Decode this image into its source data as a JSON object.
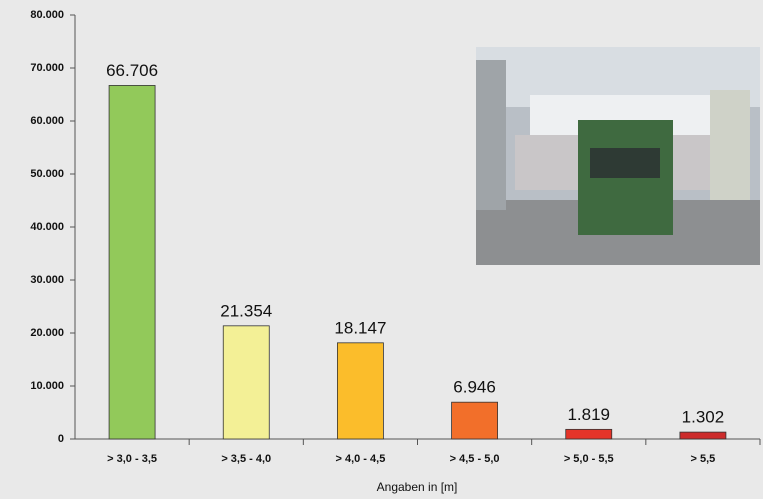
{
  "chart_data": {
    "type": "bar",
    "x_label": "Angaben in [m]",
    "categories": [
      "> 3,0 - 3,5",
      "> 3,5 - 4,0",
      "> 4,0 - 4,5",
      "> 4,5 - 5,0",
      "> 5,0 - 5,5",
      "> 5,5"
    ],
    "values": [
      66706,
      21354,
      18147,
      6946,
      1819,
      1302
    ],
    "value_labels": [
      "66.706",
      "21.354",
      "18.147",
      "6.946",
      "1.819",
      "1.302"
    ],
    "colors": [
      "#92c95a",
      "#f3f096",
      "#fbbd2b",
      "#f26f2a",
      "#e43429",
      "#cc2b2b"
    ],
    "ylim": [
      0,
      80000
    ],
    "yticks": [
      0,
      {
        "value": 10000,
        "label": "10.000"
      },
      {
        "value": 20000,
        "label": "20.000"
      },
      {
        "value": 30000,
        "label": "30.000"
      },
      {
        "value": 40000,
        "label": "40.000"
      },
      {
        "value": 50000,
        "label": "50.000"
      },
      {
        "value": 60000,
        "label": "60.000"
      },
      {
        "value": 70000,
        "label": "70.000"
      },
      {
        "value": 80000,
        "label": "80.000"
      }
    ],
    "grid": false
  }
}
